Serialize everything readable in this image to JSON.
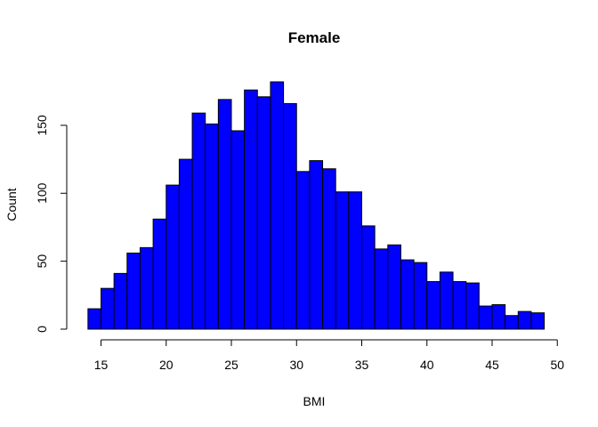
{
  "chart_data": {
    "type": "bar",
    "title": "Female",
    "xlabel": "BMI",
    "ylabel": "Count",
    "bin_width": 1,
    "bin_starts": [
      14,
      15,
      16,
      17,
      18,
      19,
      20,
      21,
      22,
      23,
      24,
      25,
      26,
      27,
      28,
      29,
      30,
      31,
      32,
      33,
      34,
      35,
      36,
      37,
      38,
      39,
      40,
      41,
      42,
      43,
      44,
      45,
      46,
      47,
      48
    ],
    "values": [
      15,
      30,
      41,
      56,
      60,
      81,
      106,
      125,
      159,
      151,
      169,
      146,
      176,
      171,
      182,
      166,
      116,
      124,
      118,
      101,
      101,
      76,
      59,
      62,
      51,
      49,
      35,
      42,
      35,
      34,
      17,
      18,
      10,
      13,
      12
    ],
    "xlim": [
      14,
      49
    ],
    "ylim": [
      0,
      182
    ],
    "x_ticks": [
      15,
      20,
      25,
      30,
      35,
      40,
      45,
      50
    ],
    "y_ticks": [
      0,
      50,
      100,
      150
    ],
    "grid": false,
    "colors": {
      "bar_fill": "#0000ff",
      "bar_stroke": "#000000"
    }
  }
}
